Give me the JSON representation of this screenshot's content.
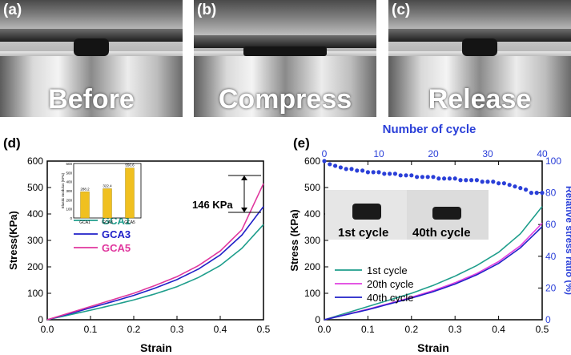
{
  "photos": [
    {
      "tag": "(a)",
      "word": "Before"
    },
    {
      "tag": "(b)",
      "word": "Compress"
    },
    {
      "tag": "(c)",
      "word": "Release"
    }
  ],
  "chart_data": [
    {
      "panel": "(d)",
      "type": "line",
      "xlabel": "Strain",
      "ylabel": "Stress(KPa)",
      "xlim": [
        0,
        0.5
      ],
      "ylim": [
        0,
        600
      ],
      "xticks": [
        "0.0",
        "0.1",
        "0.2",
        "0.3",
        "0.4",
        "0.5"
      ],
      "yticks": [
        "0",
        "100",
        "200",
        "300",
        "400",
        "500",
        "600"
      ],
      "annotation": "146 KPa",
      "legend_position": "center-left",
      "series": [
        {
          "name": "GCA1",
          "color": "#1f9e8c",
          "x": [
            0,
            0.05,
            0.1,
            0.15,
            0.2,
            0.25,
            0.3,
            0.35,
            0.4,
            0.45,
            0.5
          ],
          "y": [
            0,
            18,
            36,
            55,
            75,
            98,
            125,
            160,
            205,
            270,
            360
          ]
        },
        {
          "name": "GCA3",
          "color": "#2121c8",
          "x": [
            0,
            0.05,
            0.1,
            0.15,
            0.2,
            0.25,
            0.3,
            0.35,
            0.4,
            0.45,
            0.5
          ],
          "y": [
            0,
            22,
            45,
            68,
            92,
            120,
            152,
            192,
            245,
            320,
            428
          ]
        },
        {
          "name": "GCA5",
          "color": "#e0379e",
          "x": [
            0,
            0.05,
            0.1,
            0.15,
            0.2,
            0.25,
            0.3,
            0.35,
            0.4,
            0.45,
            0.5
          ],
          "y": [
            0,
            25,
            50,
            75,
            100,
            130,
            163,
            205,
            260,
            340,
            515
          ]
        }
      ],
      "inset": {
        "type": "bar",
        "ylabel": "Elastic modulus (KPa)",
        "ylim": [
          0,
          600
        ],
        "yticks": [
          "0",
          "100",
          "200",
          "300",
          "400",
          "500",
          "600"
        ],
        "categories": [
          "GCA1",
          "GCA3",
          "GCA5"
        ],
        "values": [
          288.2,
          322.4,
          550.6
        ],
        "labels": [
          "288.2",
          "322.4",
          "550.6"
        ],
        "color": "#f0c020"
      }
    },
    {
      "panel": "(e)",
      "type": "line",
      "xlabel": "Strain",
      "ylabel": "Stress (KPa)",
      "x2label": "Number of cycle",
      "y2label": "Relative stress ratio (%)",
      "xlim": [
        0,
        0.5
      ],
      "ylim": [
        0,
        600
      ],
      "x2lim": [
        0,
        40
      ],
      "y2lim": [
        0,
        100
      ],
      "xticks": [
        "0.0",
        "0.1",
        "0.2",
        "0.3",
        "0.4",
        "0.5"
      ],
      "yticks": [
        "0",
        "100",
        "200",
        "300",
        "400",
        "500",
        "600"
      ],
      "x2ticks": [
        "0",
        "10",
        "20",
        "30",
        "40"
      ],
      "y2ticks": [
        "0",
        "20",
        "40",
        "60",
        "80",
        "100"
      ],
      "photo_labels": [
        "1st cycle",
        "40th cycle"
      ],
      "legend_position": "center-left",
      "series": [
        {
          "name": "1st cycle",
          "color": "#1f9e8c",
          "x": [
            0,
            0.05,
            0.1,
            0.15,
            0.2,
            0.25,
            0.3,
            0.35,
            0.4,
            0.45,
            0.5
          ],
          "y": [
            0,
            25,
            50,
            75,
            100,
            130,
            165,
            205,
            255,
            325,
            428
          ]
        },
        {
          "name": "20th cycle",
          "color": "#e040e0",
          "x": [
            0,
            0.05,
            0.1,
            0.15,
            0.2,
            0.25,
            0.3,
            0.35,
            0.4,
            0.45,
            0.5
          ],
          "y": [
            0,
            20,
            40,
            62,
            85,
            110,
            140,
            175,
            220,
            280,
            365
          ]
        },
        {
          "name": "40th cycle",
          "color": "#2121c8",
          "x": [
            0,
            0.05,
            0.1,
            0.15,
            0.2,
            0.25,
            0.3,
            0.35,
            0.4,
            0.45,
            0.5
          ],
          "y": [
            0,
            19,
            38,
            60,
            82,
            106,
            135,
            170,
            213,
            272,
            352
          ]
        },
        {
          "name": "",
          "axis": "secondary",
          "marker": "dot",
          "color": "#2a3fd8",
          "x": [
            0,
            1,
            2,
            3,
            4,
            5,
            6,
            7,
            8,
            9,
            10,
            11,
            12,
            13,
            14,
            15,
            16,
            17,
            18,
            19,
            20,
            21,
            22,
            23,
            24,
            25,
            26,
            27,
            28,
            29,
            30,
            31,
            32,
            33,
            34,
            35,
            36,
            37,
            38,
            39,
            40
          ],
          "y": [
            100,
            98,
            97,
            96,
            95,
            95,
            94,
            94,
            93,
            93,
            93,
            92,
            92,
            92,
            91,
            91,
            91,
            90,
            90,
            90,
            90,
            89,
            89,
            89,
            89,
            88,
            88,
            88,
            88,
            87,
            87,
            87,
            86,
            86,
            85,
            84,
            83,
            82,
            80,
            80,
            80
          ]
        }
      ]
    }
  ]
}
